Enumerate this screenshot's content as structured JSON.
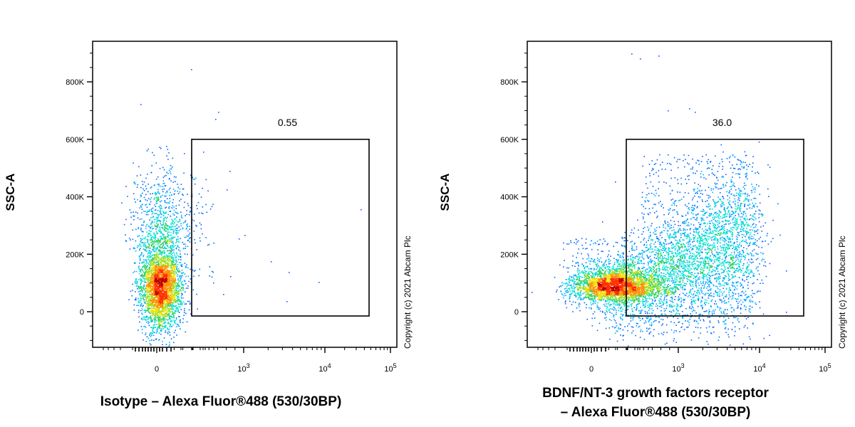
{
  "chart_data": [
    {
      "type": "scatter",
      "subtype": "flow-cytometry-density-dot-plot",
      "xlabel": "Isotype – Alexa Fluor®488 (530/30BP)",
      "ylabel": "SSC-A",
      "y_ticks": [
        "0",
        "200K",
        "400K",
        "600K",
        "800K"
      ],
      "y_tick_values": [
        0,
        200000,
        400000,
        600000,
        800000
      ],
      "x_ticks": [
        "0",
        "10^3",
        "10^4",
        "10^5"
      ],
      "x_scale": "biexponential",
      "ylim": [
        -120000,
        930000
      ],
      "gate": {
        "label": "0.55",
        "percent": 0.55,
        "x_range": [
          300,
          50000
        ],
        "y_range": [
          -15000,
          600000
        ]
      },
      "copyright": "Copyright (c) 2021 Abcam Plc",
      "population": {
        "center_x": 0,
        "center_y": 90000,
        "spread_x": 110,
        "spread_y": 70000
      }
    },
    {
      "type": "scatter",
      "subtype": "flow-cytometry-density-dot-plot",
      "xlabel": "BDNF/NT-3 growth factors receptor – Alexa Fluor®488 (530/30BP)",
      "xlabel_lines": [
        "BDNF/NT-3 growth factors receptor",
        "– Alexa Fluor®488 (530/30BP)"
      ],
      "ylabel": "SSC-A",
      "y_ticks": [
        "0",
        "200K",
        "400K",
        "600K",
        "800K"
      ],
      "y_tick_values": [
        0,
        200000,
        400000,
        600000,
        800000
      ],
      "x_ticks": [
        "0",
        "10^3",
        "10^4",
        "10^5"
      ],
      "x_scale": "biexponential",
      "ylim": [
        -120000,
        930000
      ],
      "gate": {
        "label": "36.0",
        "percent": 36.0,
        "x_range": [
          300,
          50000
        ],
        "y_range": [
          -15000,
          600000
        ]
      },
      "copyright": "Copyright (c) 2021 Abcam Plc",
      "population": {
        "center_x": 150,
        "center_y": 60000,
        "spread_x": 600,
        "spread_y": 110000
      }
    }
  ]
}
